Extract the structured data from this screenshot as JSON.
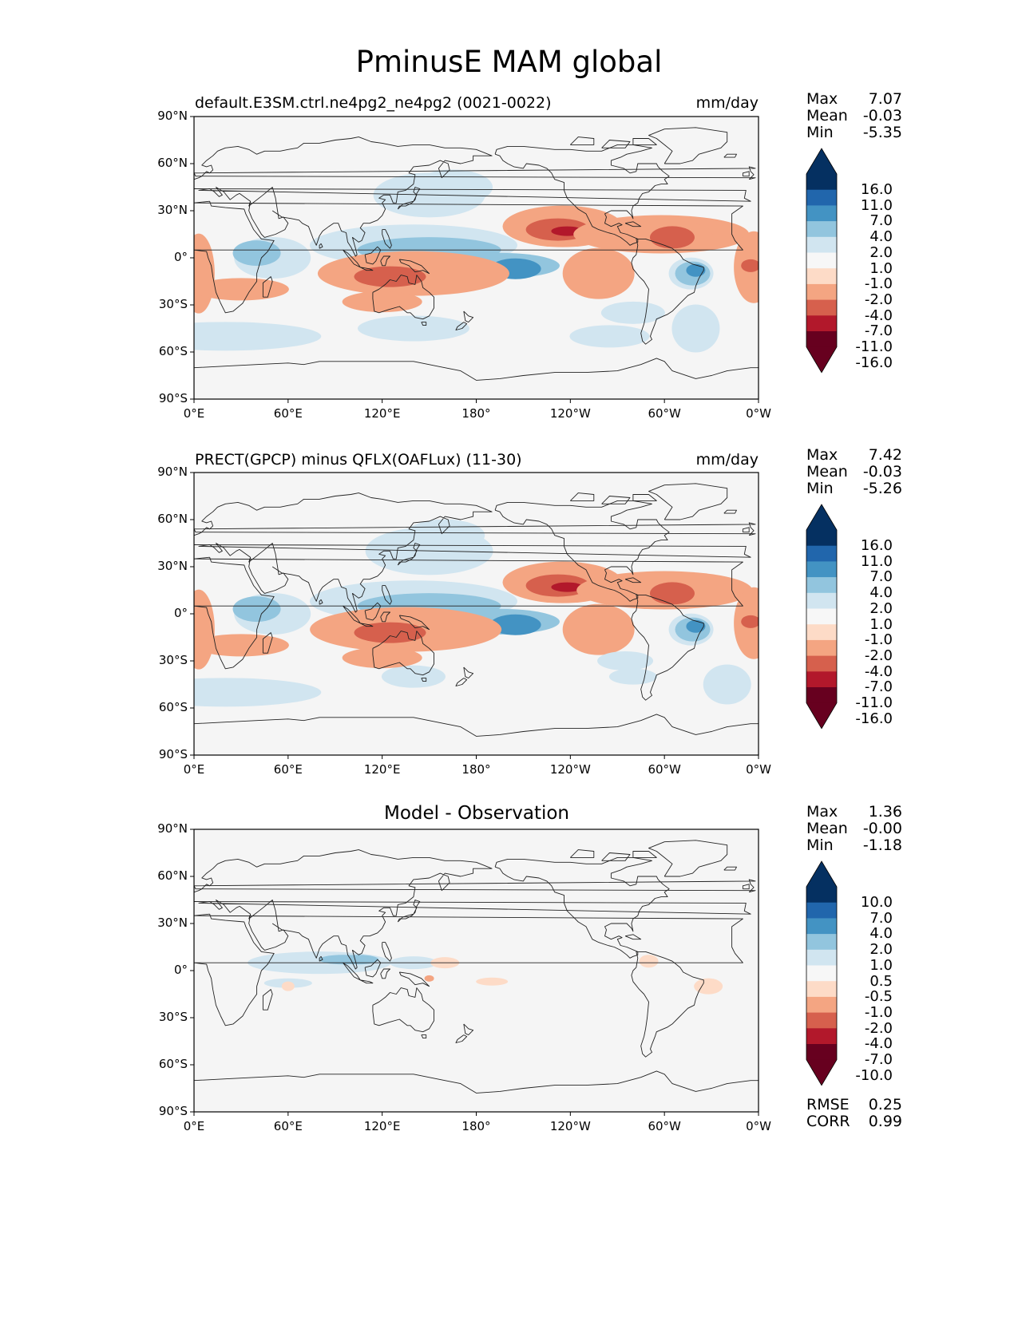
{
  "figure": {
    "title": "PminusE MAM global"
  },
  "axes": {
    "lat_ticks": [
      "90°N",
      "60°N",
      "30°N",
      "0°",
      "30°S",
      "60°S",
      "90°S"
    ],
    "lon_ticks": [
      "0°E",
      "60°E",
      "120°E",
      "180°",
      "120°W",
      "60°W",
      "0°W"
    ]
  },
  "panels": [
    {
      "title_left": "default.E3SM.ctrl.ne4pg2_ne4pg2 (0021-0022)",
      "title_right": "mm/day",
      "title_center": "",
      "stats": [
        {
          "label": "Max",
          "value": "7.07"
        },
        {
          "label": "Mean",
          "value": "-0.03"
        },
        {
          "label": "Min",
          "value": "-5.35"
        }
      ],
      "levels": [
        "16.0",
        "11.0",
        "7.0",
        "4.0",
        "2.0",
        "1.0",
        "-1.0",
        "-2.0",
        "-4.0",
        "-7.0",
        "-11.0",
        "-16.0"
      ]
    },
    {
      "title_left": "PRECT(GPCP) minus QFLX(OAFLux) (11-30)",
      "title_right": "mm/day",
      "title_center": "",
      "stats": [
        {
          "label": "Max",
          "value": "7.42"
        },
        {
          "label": "Mean",
          "value": "-0.03"
        },
        {
          "label": "Min",
          "value": "-5.26"
        }
      ],
      "levels": [
        "16.0",
        "11.0",
        "7.0",
        "4.0",
        "2.0",
        "1.0",
        "-1.0",
        "-2.0",
        "-4.0",
        "-7.0",
        "-11.0",
        "-16.0"
      ]
    },
    {
      "title_left": "",
      "title_right": "",
      "title_center": "Model - Observation",
      "stats": [
        {
          "label": "Max",
          "value": "1.36"
        },
        {
          "label": "Mean",
          "value": "-0.00"
        },
        {
          "label": "Min",
          "value": "-1.18"
        }
      ],
      "levels": [
        "10.0",
        "7.0",
        "4.0",
        "2.0",
        "1.0",
        "0.5",
        "-0.5",
        "-1.0",
        "-2.0",
        "-4.0",
        "-7.0",
        "-10.0"
      ],
      "extra_stats": [
        {
          "label": "RMSE",
          "value": "0.25"
        },
        {
          "label": "CORR",
          "value": "0.99"
        }
      ]
    }
  ],
  "colors": {
    "colorbar": [
      "#053061",
      "#2166ac",
      "#4393c3",
      "#92c5de",
      "#d1e5f0",
      "#f7f7f7",
      "#fddbc7",
      "#f4a582",
      "#d6604d",
      "#b2182b",
      "#67001f"
    ],
    "background": "#f5f5f5"
  }
}
